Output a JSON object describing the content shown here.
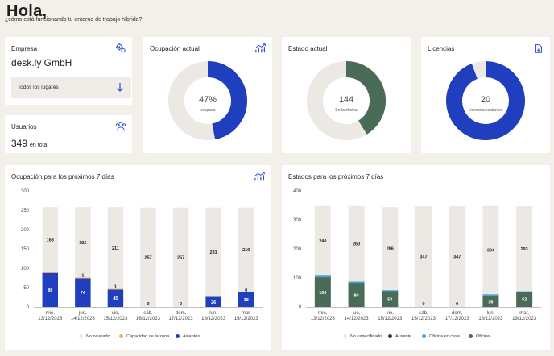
{
  "greeting": {
    "title": "Hola,",
    "subtitle": "¿cómo está funcionando tu entorno de trabajo híbrido?"
  },
  "company_card": {
    "title": "Empresa",
    "company": "desk.ly GmbH",
    "location_select": "Todos los lugares",
    "icon": "settings-icon"
  },
  "users_card": {
    "title": "Usuarios",
    "value": "349",
    "unit": "en total",
    "icon": "users-icon"
  },
  "occupancy_card": {
    "title": "Ocupación actual",
    "value_text": "47%",
    "caption": "ocupado",
    "fraction": 0.47,
    "colors": {
      "filled": "#1f3fbf",
      "empty": "#ece9e4"
    }
  },
  "status_card": {
    "title": "Estado actual",
    "value_text": "144",
    "caption": "En la oficina",
    "fraction": 0.4126,
    "colors": {
      "filled": "#4a6b58",
      "empty": "#ece9e4"
    }
  },
  "licenses_card": {
    "title": "Licencias",
    "value_text": "20",
    "caption": "Licencias restantes",
    "fraction": 0.943,
    "colors": {
      "filled": "#1f3fbf",
      "empty": "#ece9e4"
    }
  },
  "chart_data": [
    {
      "type": "bar",
      "title": "Ocupación para los próximos 7 días",
      "categories": [
        [
          "mié,",
          "13/12/2023"
        ],
        [
          "jue,",
          "14/12/2023"
        ],
        [
          "vie,",
          "15/12/2023"
        ],
        [
          "sáb,",
          "16/12/2023"
        ],
        [
          "dom,",
          "17/12/2023"
        ],
        [
          "lun,",
          "18/12/2023"
        ],
        [
          "mar,",
          "19/12/2023"
        ]
      ],
      "stacked": true,
      "ylim": [
        0,
        300
      ],
      "yticks": [
        0,
        50,
        100,
        150,
        200,
        250,
        300
      ],
      "series": [
        {
          "name": "Asientos",
          "values": [
            88,
            74,
            45,
            0,
            0,
            26,
            38
          ],
          "color": "#1f3fbf"
        },
        {
          "name": "Capacidad de la zona",
          "values": [
            2,
            2,
            2,
            0,
            0,
            0,
            0
          ],
          "color": "#f0b060"
        },
        {
          "name": "No ocupado",
          "values": [
            168,
            182,
            211,
            257,
            257,
            231,
            219
          ],
          "color": "#ece9e4"
        }
      ],
      "top_labels": [
        null,
        "1",
        "1",
        null,
        null,
        null,
        "0"
      ],
      "legend": [
        "No ocupado",
        "Capacidad de la zona",
        "Asientos"
      ]
    },
    {
      "type": "bar",
      "title": "Estados para los próximos 7 días",
      "categories": [
        [
          "mié,",
          "13/12/2023"
        ],
        [
          "jue,",
          "14/12/2023"
        ],
        [
          "vie,",
          "15/12/2023"
        ],
        [
          "sáb,",
          "16/12/2023"
        ],
        [
          "dom,",
          "17/12/2023"
        ],
        [
          "lun,",
          "18/12/2023"
        ],
        [
          "mar,",
          "19/12/2023"
        ]
      ],
      "stacked": true,
      "ylim": [
        0,
        400
      ],
      "yticks": [
        0,
        100,
        200,
        300,
        400
      ],
      "series": [
        {
          "name": "Oficina",
          "values": [
            100,
            80,
            53,
            0,
            0,
            36,
            52
          ],
          "color": "#4a6b58"
        },
        {
          "name": "Ausente",
          "values": [
            2,
            2,
            1,
            0,
            0,
            2,
            0
          ],
          "color": "#3c3c3c"
        },
        {
          "name": "Oficina en casa",
          "values": [
            6,
            6,
            4,
            0,
            0,
            6,
            2
          ],
          "color": "#4aa3d8"
        },
        {
          "name": "No especificado",
          "values": [
            240,
            260,
            286,
            347,
            347,
            304,
            293
          ],
          "color": "#ece9e4"
        }
      ],
      "legend": [
        "No especificado",
        "Ausente",
        "Oficina en casa",
        "Oficina"
      ]
    }
  ]
}
